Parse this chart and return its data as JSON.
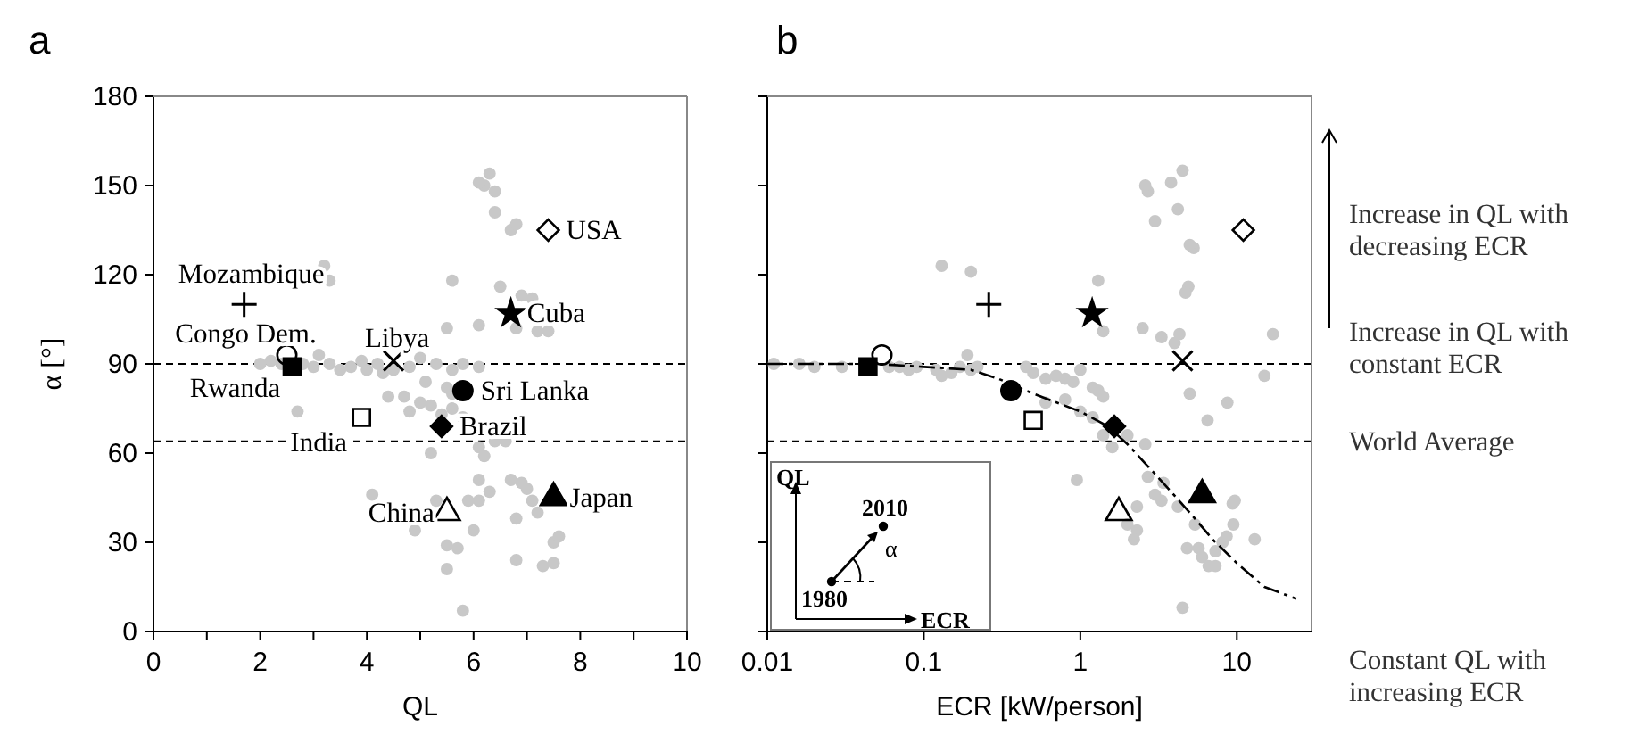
{
  "chart_data": [
    {
      "type": "scatter",
      "title": "a",
      "xlabel": "QL",
      "ylabel": "α [°]",
      "xlim": [
        0,
        10
      ],
      "ylim": [
        0,
        180
      ],
      "xticks": [
        0,
        {
          "value": 1,
          "label": null
        },
        2,
        {
          "value": 3,
          "label": null
        },
        4,
        {
          "value": 5,
          "label": null
        },
        6,
        {
          "value": 7,
          "label": null
        },
        8,
        {
          "value": 9,
          "label": null
        },
        10
      ],
      "yticks": [
        0,
        30,
        60,
        90,
        120,
        150,
        180
      ],
      "ref_lines": [
        {
          "axis": "y",
          "value": 90,
          "line_style": "dashed"
        },
        {
          "axis": "y",
          "value": 64,
          "line_style": "dashed"
        }
      ],
      "series": [
        {
          "color": "#c8c8c8",
          "marker": "circle",
          "x": [
            6.2,
            6.3,
            6.1,
            6.4,
            6.4,
            6.7,
            6.8,
            5.6,
            6.5,
            6.9,
            7.1,
            6.1,
            7.2,
            7.4,
            5.5,
            6.8,
            3.2,
            3.3,
            2.0,
            2.2,
            2.4,
            2.8,
            3.0,
            3.1,
            3.3,
            3.5,
            3.7,
            3.9,
            4.0,
            4.2,
            4.3,
            4.5,
            4.8,
            5.0,
            5.3,
            5.6,
            5.8,
            6.1,
            5.1,
            5.5,
            5.6,
            4.4,
            4.7,
            4.8,
            5.0,
            5.2,
            5.4,
            5.6,
            2.7,
            5.8,
            6.4,
            6.6,
            6.1,
            5.2,
            6.2,
            6.1,
            6.1,
            6.7,
            6.9,
            7.0,
            6.8,
            7.1,
            7.2,
            6.3,
            5.9,
            5.3,
            4.1,
            4.9,
            5.5,
            5.7,
            6.0,
            5.5,
            7.5,
            7.6,
            7.3,
            6.8,
            7.5,
            5.8
          ],
          "values": [
            150,
            154,
            151,
            148,
            141,
            135,
            137,
            118,
            116,
            113,
            112,
            103,
            101,
            101,
            102,
            102,
            123,
            118,
            90,
            91,
            90,
            90,
            89,
            93,
            90,
            88,
            89,
            91,
            88,
            90,
            87,
            88,
            89,
            92,
            90,
            88,
            90,
            89,
            84,
            82,
            80,
            79,
            79,
            74,
            77,
            76,
            73,
            75,
            74,
            72,
            64,
            64,
            62,
            60,
            59,
            51,
            44,
            51,
            50,
            48,
            38,
            44,
            40,
            47,
            44,
            44,
            46,
            34,
            29,
            28,
            34,
            21,
            30,
            32,
            22,
            24,
            23,
            7
          ]
        },
        {
          "name": "Mozambique",
          "color": "#000000",
          "marker": "plus",
          "x": [
            1.7
          ],
          "values": [
            110
          ]
        },
        {
          "name": "Congo Dem.",
          "color": "#000000",
          "marker": "circle-open",
          "x": [
            2.5
          ],
          "values": [
            93
          ]
        },
        {
          "name": "Rwanda",
          "color": "#000000",
          "marker": "square",
          "x": [
            2.6
          ],
          "values": [
            89
          ]
        },
        {
          "name": "Libya",
          "color": "#000000",
          "marker": "cross",
          "x": [
            4.5
          ],
          "values": [
            91
          ]
        },
        {
          "name": "India",
          "color": "#000000",
          "marker": "square-open",
          "x": [
            3.9
          ],
          "values": [
            72
          ]
        },
        {
          "name": "Sri Lanka",
          "color": "#000000",
          "marker": "circle",
          "x": [
            5.8
          ],
          "values": [
            81
          ]
        },
        {
          "name": "Brazil",
          "color": "#000000",
          "marker": "diamond",
          "x": [
            5.4
          ],
          "values": [
            69
          ]
        },
        {
          "name": "China",
          "color": "#000000",
          "marker": "triangle-open",
          "x": [
            5.5
          ],
          "values": [
            40
          ]
        },
        {
          "name": "Japan",
          "color": "#000000",
          "marker": "triangle",
          "x": [
            7.5
          ],
          "values": [
            45
          ]
        },
        {
          "name": "USA",
          "color": "#000000",
          "marker": "diamond-open",
          "x": [
            7.4
          ],
          "values": [
            135
          ]
        },
        {
          "name": "Cuba",
          "color": "#000000",
          "marker": "star",
          "x": [
            6.7
          ],
          "values": [
            107
          ]
        }
      ]
    },
    {
      "type": "scatter",
      "title": "b",
      "xlabel": "ECR [kW/person]",
      "log": "x",
      "xlim": [
        0.01,
        30
      ],
      "ylim": [
        0,
        180
      ],
      "xticks": [
        0.01,
        0.1,
        1,
        10
      ],
      "yticks": [
        0,
        30,
        60,
        90,
        120,
        150,
        180
      ],
      "tick_labels": "x",
      "ref_lines": [
        {
          "axis": "y",
          "value": 90,
          "line_style": "dashed",
          "label": "Increase in QL with constant ECR"
        },
        {
          "axis": "y",
          "value": 64,
          "line_style": "dashed",
          "label": "World Average"
        }
      ],
      "annotations": [
        "Increase in QL with decreasing ECR",
        "Constant QL with increasing ECR",
        "QL",
        "ECR",
        "2010",
        "1980",
        "α"
      ],
      "series": [
        {
          "color": "#c8c8c8",
          "marker": "circle",
          "x": [
            0.011,
            0.016,
            0.02,
            0.03,
            0.06,
            0.07,
            0.08,
            0.09,
            0.12,
            0.13,
            0.15,
            0.17,
            0.19,
            0.2,
            0.22,
            0.45,
            0.5,
            0.6,
            0.7,
            0.8,
            0.9,
            1.0,
            1.2,
            1.3,
            1.4,
            0.6,
            0.8,
            1.0,
            1.2,
            1.4,
            2.0,
            2.6,
            1.6,
            0.95,
            0.13,
            0.2,
            1.3,
            1.4,
            2.5,
            3.3,
            4.0,
            4.3,
            4.9,
            4.7,
            5.3,
            5.0,
            4.2,
            2.7,
            2.6,
            3.8,
            4.5,
            3.0,
            3.4,
            3.0,
            3.3,
            4.2,
            5.4,
            2.3,
            2.0,
            2.3,
            2.2,
            4.8,
            5.7,
            6.0,
            7.3,
            6.6,
            7.3,
            8.1,
            9.5,
            9.4,
            9.7,
            8.6,
            13,
            17,
            15,
            2.7,
            4.5,
            5.0,
            8.7,
            6.5
          ],
          "values": [
            90,
            90,
            89,
            89,
            89,
            89,
            88,
            89,
            88,
            86,
            87,
            89,
            93,
            88,
            89,
            89,
            87,
            85,
            86,
            85,
            84,
            88,
            82,
            81,
            79,
            77,
            78,
            74,
            72,
            66,
            66,
            63,
            62,
            51,
            123,
            121,
            118,
            101,
            102,
            99,
            97,
            100,
            116,
            114,
            129,
            130,
            142,
            148,
            150,
            151,
            155,
            138,
            50,
            46,
            44,
            42,
            36,
            42,
            36,
            34,
            31,
            28,
            28,
            25,
            27,
            22,
            22,
            30,
            36,
            43,
            44,
            32,
            31,
            100,
            86,
            52,
            8,
            80,
            77,
            71
          ]
        },
        {
          "type": "line",
          "color": "#000000",
          "marker": "none",
          "line_style": "dashdot",
          "x": [
            0.01,
            0.05,
            0.1,
            0.2,
            0.3,
            0.5,
            1,
            1.5,
            2,
            3,
            5,
            7,
            10,
            15,
            24
          ],
          "values": [
            90,
            90,
            89,
            88,
            85,
            80,
            74,
            69,
            63,
            53,
            40,
            31,
            23,
            15,
            11
          ]
        },
        {
          "color": "#000000",
          "marker": "plus",
          "x": [
            0.26
          ],
          "values": [
            110
          ]
        },
        {
          "color": "#000000",
          "marker": "circle-open",
          "x": [
            0.054
          ],
          "values": [
            93
          ]
        },
        {
          "color": "#000000",
          "marker": "square",
          "x": [
            0.044
          ],
          "values": [
            89
          ]
        },
        {
          "color": "#000000",
          "marker": "cross",
          "x": [
            4.5
          ],
          "values": [
            91
          ]
        },
        {
          "color": "#000000",
          "marker": "square-open",
          "x": [
            0.5
          ],
          "values": [
            71
          ]
        },
        {
          "color": "#000000",
          "marker": "circle",
          "x": [
            0.36
          ],
          "values": [
            81
          ]
        },
        {
          "color": "#000000",
          "marker": "diamond",
          "x": [
            1.65
          ],
          "values": [
            69
          ]
        },
        {
          "color": "#000000",
          "marker": "triangle-open",
          "x": [
            1.76
          ],
          "values": [
            40
          ]
        },
        {
          "color": "#000000",
          "marker": "triangle",
          "x": [
            6.0
          ],
          "values": [
            46
          ]
        },
        {
          "color": "#000000",
          "marker": "diamond-open",
          "x": [
            11
          ],
          "values": [
            135
          ]
        },
        {
          "color": "#000000",
          "marker": "star",
          "x": [
            1.19
          ],
          "values": [
            107
          ]
        }
      ]
    }
  ]
}
